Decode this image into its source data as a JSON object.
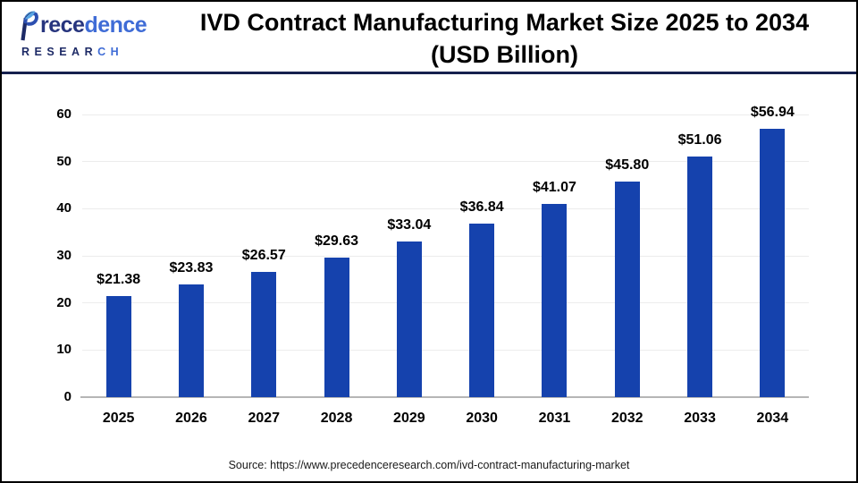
{
  "header": {
    "logo": {
      "brand_part1": "rece",
      "brand_part2": "dence",
      "research_part1": "RESEAR",
      "research_part2": "CH"
    },
    "title_line1": "IVD Contract Manufacturing Market Size 2025 to 2034",
    "title_line2": "(USD Billion)"
  },
  "chart_data": {
    "type": "bar",
    "title": "IVD Contract Manufacturing Market Size 2025 to 2034 (USD Billion)",
    "categories": [
      "2025",
      "2026",
      "2027",
      "2028",
      "2029",
      "2030",
      "2031",
      "2032",
      "2033",
      "2034"
    ],
    "values": [
      21.38,
      23.83,
      26.57,
      29.63,
      33.04,
      36.84,
      41.07,
      45.8,
      51.06,
      56.94
    ],
    "labels": [
      "$21.38",
      "$23.83",
      "$26.57",
      "$29.63",
      "$33.04",
      "$36.84",
      "$41.07",
      "$45.80",
      "$51.06",
      "$56.94"
    ],
    "xlabel": "",
    "ylabel": "",
    "ylim": [
      0,
      60
    ],
    "yticks": [
      0,
      10,
      20,
      30,
      40,
      50,
      60
    ],
    "grid": true,
    "legend": false,
    "bar_color": "#1542ad"
  },
  "footer": {
    "source": "Source: https://www.precedenceresearch.com/ivd-contract-manufacturing-market"
  },
  "colors": {
    "bar": "#1542ad",
    "header_rule": "#16204e",
    "gridline": "#ececec",
    "baseline": "#b6b6b6",
    "logo_dark": "#1d2a66",
    "logo_light": "#3f6cd6",
    "leaf_light": "#57a4e4"
  }
}
